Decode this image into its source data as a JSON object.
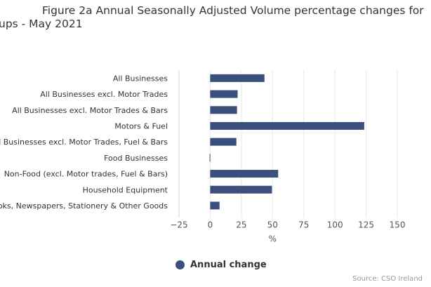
{
  "title_line1": "Figure 2a Annual Seasonally Adjusted Volume percentage changes for",
  "title_line2": "ups - May 2021",
  "source": "Source: CSO Ireland",
  "legend_label": "Annual change",
  "bar_color": "#3b4f7c",
  "chart_data": {
    "type": "bar",
    "orientation": "horizontal",
    "categories": [
      "All Businesses",
      "All Businesses excl. Motor Trades",
      "All Businesses excl. Motor Trades & Bars",
      "Motors & Fuel",
      "All Businesses excl. Motor Trades, Fuel & Bars",
      "Food Businesses",
      "Non-Food (excl. Motor trades, Fuel & Bars)",
      "Household Equipment",
      "Books, Newspapers, Stationery & Other Goods"
    ],
    "series": [
      {
        "name": "Annual change",
        "values": [
          43.5,
          22,
          21.5,
          123.5,
          21,
          -0.5,
          54.5,
          49.5,
          7.5
        ]
      }
    ],
    "xlabel": "%",
    "xlim": [
      -25,
      150
    ],
    "ticks": [
      -25,
      0,
      25,
      50,
      75,
      100,
      125,
      150
    ],
    "tick_labels": [
      "−25",
      "0",
      "25",
      "50",
      "75",
      "100",
      "125",
      "150"
    ],
    "legend": "bottom-center",
    "grid": true
  }
}
